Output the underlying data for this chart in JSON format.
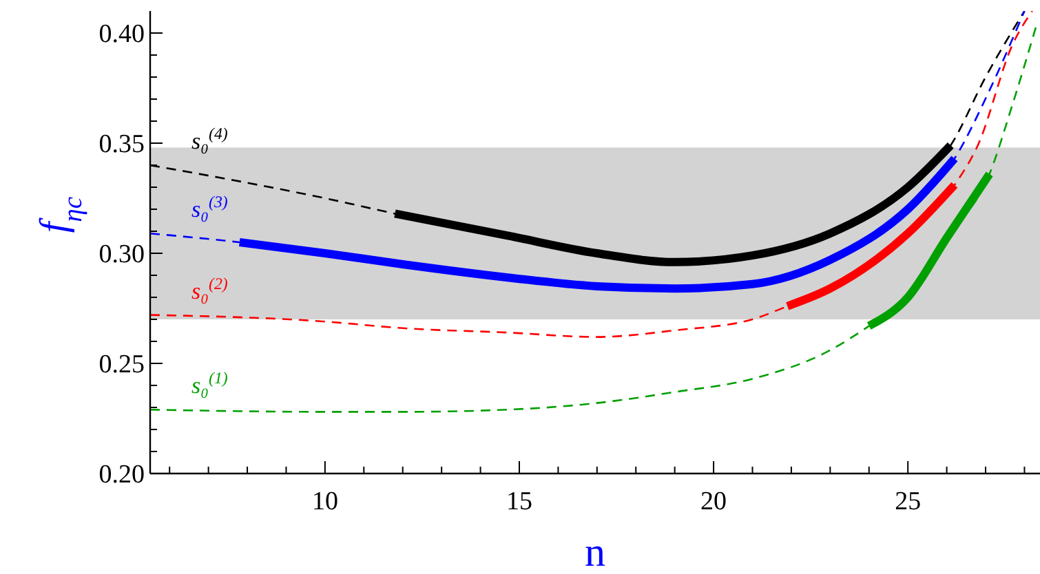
{
  "chart_data": {
    "type": "line",
    "xlabel": "n",
    "ylabel": "f$_{ηc}$",
    "xlim": [
      5.5,
      28.4
    ],
    "ylim": [
      0.2,
      0.41
    ],
    "xticks": [
      {
        "value": 6,
        "label": null
      },
      {
        "value": 7,
        "label": null
      },
      {
        "value": 8,
        "label": null
      },
      {
        "value": 9,
        "label": null
      },
      10,
      {
        "value": 11,
        "label": null
      },
      {
        "value": 12,
        "label": null
      },
      {
        "value": 13,
        "label": null
      },
      {
        "value": 14,
        "label": null
      },
      15,
      {
        "value": 16,
        "label": null
      },
      {
        "value": 17,
        "label": null
      },
      {
        "value": 18,
        "label": null
      },
      {
        "value": 19,
        "label": null
      },
      20,
      {
        "value": 21,
        "label": null
      },
      {
        "value": 22,
        "label": null
      },
      {
        "value": 23,
        "label": null
      },
      {
        "value": 24,
        "label": null
      },
      25,
      {
        "value": 26,
        "label": null
      },
      {
        "value": 27,
        "label": null
      },
      {
        "value": 28,
        "label": null
      }
    ],
    "yticks": [
      {
        "value": 0.2,
        "label": "0.20"
      },
      {
        "value": 0.21,
        "label": null
      },
      {
        "value": 0.22,
        "label": null
      },
      {
        "value": 0.23,
        "label": null
      },
      {
        "value": 0.24,
        "label": null
      },
      {
        "value": 0.25,
        "label": "0.25"
      },
      {
        "value": 0.26,
        "label": null
      },
      {
        "value": 0.27,
        "label": null
      },
      {
        "value": 0.28,
        "label": null
      },
      {
        "value": 0.29,
        "label": null
      },
      {
        "value": 0.3,
        "label": "0.30"
      },
      {
        "value": 0.31,
        "label": null
      },
      {
        "value": 0.32,
        "label": null
      },
      {
        "value": 0.33,
        "label": null
      },
      {
        "value": 0.34,
        "label": null
      },
      {
        "value": 0.35,
        "label": "0.35"
      },
      {
        "value": 0.36,
        "label": null
      },
      {
        "value": 0.37,
        "label": null
      },
      {
        "value": 0.38,
        "label": null
      },
      {
        "value": 0.39,
        "label": null
      },
      {
        "value": 0.4,
        "label": "0.40"
      }
    ],
    "grid": false,
    "bands": [
      {
        "axis": "y",
        "from": 0.27,
        "to": 0.348,
        "color": "#d3d3d3"
      }
    ],
    "series": [
      {
        "name": "s₀$^{(4)}$",
        "color": "#000000",
        "line_style": "dashed",
        "x": [
          5.5,
          8,
          10,
          11.8,
          14.7,
          19,
          21,
          23,
          25,
          26.1,
          27,
          28
        ],
        "values": [
          0.34,
          0.332,
          0.325,
          0.318,
          0.308,
          0.296,
          0.299,
          0.309,
          0.33,
          0.349,
          0.38,
          0.41
        ]
      },
      {
        "name": "s₀$^{(3)}$",
        "color": "#0000ff",
        "line_style": "dashed",
        "x": [
          5.5,
          7.8,
          10,
          12,
          14.7,
          17,
          19,
          21,
          23,
          25,
          26.2,
          27.1,
          28
        ],
        "values": [
          0.309,
          0.305,
          0.3,
          0.295,
          0.289,
          0.285,
          0.284,
          0.286,
          0.297,
          0.32,
          0.343,
          0.374,
          0.41
        ]
      },
      {
        "name": "s₀$^{(2)}$",
        "color": "#ff0000",
        "line_style": "dashed",
        "x": [
          5.5,
          10,
          12,
          14.7,
          17,
          19,
          21,
          21.9,
          23,
          25,
          26.2,
          26.8,
          27.7,
          28.2
        ],
        "values": [
          0.272,
          0.269,
          0.266,
          0.264,
          0.262,
          0.265,
          0.27,
          0.276,
          0.284,
          0.309,
          0.331,
          0.349,
          0.395,
          0.41
        ]
      },
      {
        "name": "s₀$^{(1)}$",
        "color": "#00a000",
        "line_style": "dashed",
        "x": [
          5.5,
          10,
          12,
          14.7,
          17,
          19,
          21,
          23,
          24,
          25,
          26,
          27.1,
          27.7,
          28.3
        ],
        "values": [
          0.229,
          0.228,
          0.228,
          0.229,
          0.232,
          0.237,
          0.243,
          0.256,
          0.267,
          0.28,
          0.307,
          0.336,
          0.368,
          0.403
        ]
      },
      {
        "color": "#000000",
        "line_style": "solid",
        "x": [
          11.8,
          14.7,
          17,
          19,
          21,
          23,
          25,
          26.1
        ],
        "values": [
          0.318,
          0.308,
          0.3,
          0.296,
          0.299,
          0.309,
          0.33,
          0.349
        ]
      },
      {
        "color": "#0000ff",
        "line_style": "solid",
        "x": [
          7.8,
          10,
          12,
          14.7,
          17,
          19,
          21,
          23,
          25,
          26.2
        ],
        "values": [
          0.305,
          0.3,
          0.295,
          0.289,
          0.285,
          0.284,
          0.286,
          0.297,
          0.32,
          0.343
        ]
      },
      {
        "color": "#ff0000",
        "line_style": "solid",
        "x": [
          21.9,
          23,
          25,
          26.2
        ],
        "values": [
          0.276,
          0.284,
          0.309,
          0.331
        ]
      },
      {
        "color": "#00a000",
        "line_style": "solid",
        "x": [
          24,
          25,
          26,
          27.1
        ],
        "values": [
          0.267,
          0.28,
          0.307,
          0.336
        ]
      }
    ]
  }
}
